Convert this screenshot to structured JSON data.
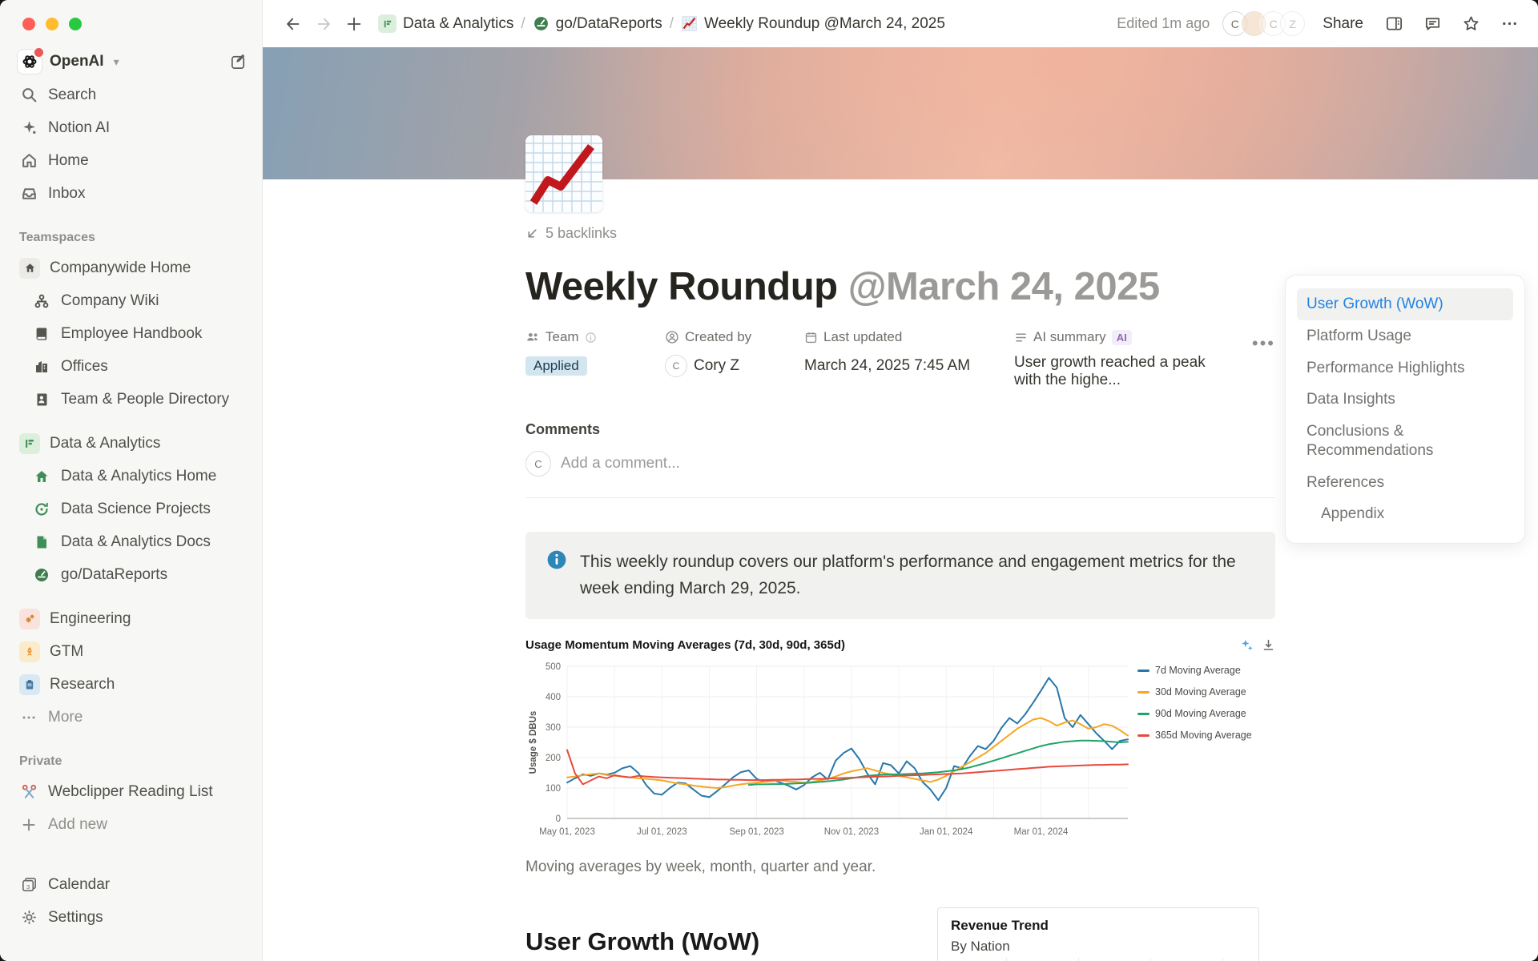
{
  "topbar": {
    "breadcrumb": [
      {
        "label": "Data & Analytics"
      },
      {
        "label": "go/DataReports"
      },
      {
        "label": "Weekly Roundup @March 24, 2025"
      }
    ],
    "edited": "Edited 1m ago",
    "share_label": "Share",
    "avatars": [
      {
        "label": "C"
      },
      {
        "label": ""
      },
      {
        "label": "C"
      },
      {
        "label": "Z"
      }
    ]
  },
  "sidebar": {
    "workspace": {
      "name": "OpenAI"
    },
    "nav": [
      {
        "label": "Search"
      },
      {
        "label": "Notion AI"
      },
      {
        "label": "Home"
      },
      {
        "label": "Inbox"
      }
    ],
    "teamspaces": {
      "header": "Teamspaces",
      "groups": [
        {
          "label": "Companywide Home"
        },
        {
          "label": "Company Wiki"
        },
        {
          "label": "Employee Handbook"
        },
        {
          "label": "Offices"
        },
        {
          "label": "Team & People Directory"
        },
        {
          "label": "Data & Analytics"
        },
        {
          "label": "Data & Analytics Home"
        },
        {
          "label": "Data Science Projects"
        },
        {
          "label": "Data & Analytics Docs"
        },
        {
          "label": "go/DataReports"
        },
        {
          "label": "Engineering"
        },
        {
          "label": "GTM"
        },
        {
          "label": "Research"
        }
      ],
      "more_label": "More"
    },
    "private": {
      "header": "Private",
      "items": [
        {
          "label": "Webclipper Reading List"
        },
        {
          "label": "Add new"
        }
      ]
    },
    "footer": [
      {
        "label": "Calendar"
      },
      {
        "label": "Settings"
      }
    ]
  },
  "page": {
    "backlinks": "5 backlinks",
    "title_main": "Weekly Roundup ",
    "title_mention": "@March 24, 2025",
    "properties": {
      "team_label": "Team",
      "team_value": "Applied",
      "created_label": "Created by",
      "created_avatar": "C",
      "created_value": "Cory Z",
      "updated_label": "Last updated",
      "updated_value": "March 24, 2025 7:45 AM",
      "ai_label": "AI summary",
      "ai_badge": "AI",
      "ai_value": "User growth reached a peak with the highe..."
    },
    "comments_label": "Comments",
    "comment_avatar": "C",
    "comment_placeholder": "Add a comment...",
    "callout": "This weekly roundup covers our platform's performance and engagement metrics for the week ending March 29, 2025.",
    "section_heading": "User Growth (WoW)"
  },
  "toc": {
    "items": [
      {
        "label": "User Growth (WoW)"
      },
      {
        "label": "Platform Usage"
      },
      {
        "label": "Performance Highlights"
      },
      {
        "label": "Data Insights"
      },
      {
        "label": "Conclusions & Recommendations"
      },
      {
        "label": "References"
      },
      {
        "label": "Appendix"
      }
    ]
  },
  "chart_data": [
    {
      "type": "line",
      "title": "Usage Momentum Moving Averages (7d, 30d, 90d, 365d)",
      "xlabel": "",
      "ylabel": "Usage $ DBUs",
      "ylim": [
        0,
        500
      ],
      "yticks": [
        0,
        100,
        200,
        300,
        400,
        500
      ],
      "grid": true,
      "legend_position": "right",
      "n_points": 72,
      "xticks": [
        {
          "i": 0,
          "label": "May 01, 2023"
        },
        {
          "i": 12,
          "label": "Jul 01, 2023"
        },
        {
          "i": 24,
          "label": "Sep 01, 2023"
        },
        {
          "i": 36,
          "label": "Nov 01, 2023"
        },
        {
          "i": 48,
          "label": "Jan 01, 2024"
        },
        {
          "i": 60,
          "label": "Mar 01, 2024"
        }
      ],
      "series": [
        {
          "name": "7d Moving Average",
          "color": "#2778a9",
          "values": [
            118,
            132,
            145,
            140,
            148,
            144,
            150,
            165,
            172,
            150,
            110,
            82,
            78,
            100,
            118,
            115,
            95,
            75,
            70,
            90,
            112,
            135,
            152,
            158,
            130,
            120,
            126,
            118,
            108,
            95,
            110,
            135,
            150,
            128,
            190,
            215,
            230,
            195,
            148,
            112,
            182,
            175,
            148,
            188,
            165,
            120,
            95,
            60,
            100,
            172,
            165,
            205,
            238,
            228,
            255,
            298,
            330,
            312,
            342,
            380,
            420,
            462,
            430,
            330,
            300,
            340,
            310,
            280,
            255,
            228,
            255,
            260
          ]
        },
        {
          "name": "30d Moving Average",
          "color": "#f5a623",
          "values": [
            135,
            138,
            142,
            145,
            148,
            143,
            140,
            138,
            135,
            132,
            130,
            128,
            125,
            120,
            115,
            112,
            108,
            105,
            102,
            100,
            103,
            108,
            112,
            115,
            118,
            120,
            122,
            125,
            122,
            120,
            118,
            120,
            125,
            130,
            138,
            148,
            155,
            160,
            165,
            158,
            150,
            145,
            140,
            135,
            130,
            125,
            120,
            128,
            140,
            155,
            170,
            185,
            200,
            215,
            235,
            255,
            275,
            295,
            310,
            325,
            330,
            320,
            305,
            315,
            322,
            310,
            295,
            300,
            310,
            305,
            290,
            272
          ]
        },
        {
          "name": "90d Moving Average",
          "color": "#1fa368",
          "values": [
            null,
            null,
            null,
            null,
            null,
            null,
            null,
            null,
            null,
            null,
            null,
            null,
            null,
            null,
            null,
            null,
            null,
            null,
            null,
            null,
            null,
            null,
            null,
            110,
            112,
            112,
            113,
            113,
            114,
            115,
            116,
            118,
            120,
            122,
            125,
            128,
            132,
            136,
            140,
            142,
            144,
            145,
            145,
            146,
            147,
            148,
            150,
            152,
            155,
            158,
            162,
            168,
            175,
            182,
            190,
            198,
            206,
            214,
            222,
            230,
            238,
            244,
            248,
            252,
            254,
            256,
            256,
            255,
            254,
            252,
            250,
            252
          ]
        },
        {
          "name": "365d Moving Average",
          "color": "#e8493c",
          "values": [
            225,
            148,
            112,
            125,
            138,
            132,
            142,
            138,
            135,
            140,
            138,
            136,
            135,
            134,
            133,
            132,
            131,
            130,
            129,
            128,
            128,
            127,
            127,
            126,
            126,
            126,
            127,
            127,
            128,
            128,
            129,
            130,
            130,
            131,
            132,
            133,
            134,
            135,
            136,
            137,
            138,
            139,
            140,
            141,
            142,
            143,
            144,
            145,
            146,
            147,
            148,
            150,
            152,
            154,
            156,
            158,
            160,
            162,
            164,
            166,
            168,
            170,
            171,
            172,
            173,
            174,
            175,
            176,
            176,
            177,
            177,
            178
          ]
        }
      ],
      "caption": "Moving averages by week, month, quarter and year."
    },
    {
      "type": "bar",
      "title": "Revenue Trend",
      "subtitle": "By Nation",
      "bar_color": "#5b7ca3",
      "visible_bars": 1
    }
  ]
}
